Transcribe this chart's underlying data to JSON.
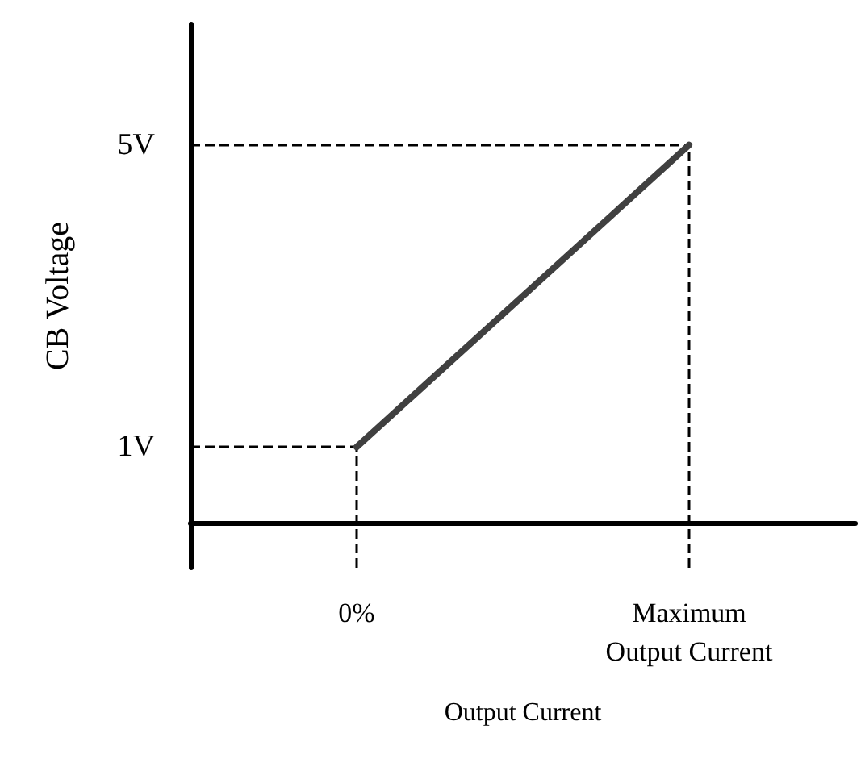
{
  "chart_data": {
    "type": "line",
    "xlabel": "Output Current",
    "ylabel": "CB Voltage",
    "categories": [
      "0%",
      "Maximum\nOutput Current"
    ],
    "series": [
      {
        "color": "#404040",
        "values": [
          1,
          5
        ]
      }
    ],
    "ylim": [
      -0.6,
      6.6
    ],
    "yticks": [
      {
        "value": 1,
        "label": "1V"
      },
      {
        "value": 5,
        "label": "5V"
      }
    ],
    "ref_lines": [
      {
        "axis": "y",
        "value": 1,
        "color": "#000000",
        "line_style": "dashed"
      },
      {
        "axis": "y",
        "value": 5,
        "color": "#000000",
        "line_style": "dashed"
      },
      {
        "axis": "x",
        "value": "0%",
        "color": "#000000",
        "line_style": "dashed"
      },
      {
        "axis": "x",
        "value": "Maximum\nOutput Current",
        "color": "#000000",
        "line_style": "dashed"
      }
    ],
    "grid": false,
    "marker": "none",
    "line_style": "solid"
  }
}
